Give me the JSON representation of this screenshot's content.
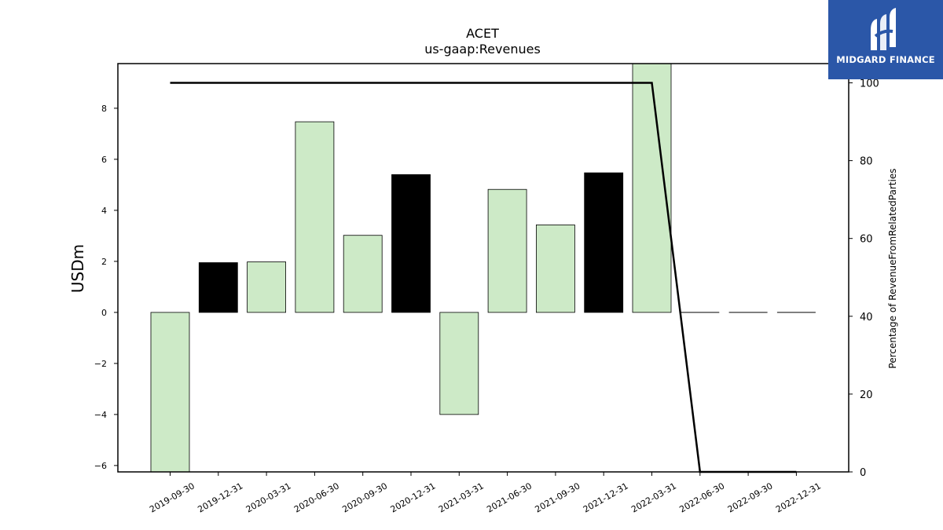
{
  "chart_data": {
    "type": "bar",
    "title": "ACET",
    "subtitle": "us-gaap:Revenues",
    "ylabel": "USDm",
    "y2label": "Percentage of RevenueFromRelatedParties",
    "categories": [
      "2019-09-30",
      "2019-12-31",
      "2020-03-31",
      "2020-06-30",
      "2020-09-30",
      "2020-12-31",
      "2021-03-31",
      "2021-06-30",
      "2021-09-30",
      "2021-12-31",
      "2022-03-31",
      "2022-06-30",
      "2022-09-30",
      "2022-12-31"
    ],
    "values": [
      -6.3,
      1.95,
      1.98,
      7.47,
      3.02,
      5.4,
      -4.0,
      4.82,
      3.43,
      5.47,
      9.8,
      0,
      0,
      0
    ],
    "bar_colors": [
      "#cdeac7",
      "#000000",
      "#cdeac7",
      "#cdeac7",
      "#cdeac7",
      "#000000",
      "#cdeac7",
      "#cdeac7",
      "#cdeac7",
      "#000000",
      "#cdeac7",
      "#cdeac7",
      "#cdeac7",
      "#cdeac7"
    ],
    "ylim": [
      -6.25,
      9.75
    ],
    "yticks": [
      -6,
      -4,
      -2,
      0,
      2,
      4,
      6,
      8
    ],
    "y2lim": [
      0,
      100
    ],
    "y2ticks": [
      0,
      20,
      40,
      60,
      80,
      100
    ],
    "line_series": {
      "x_index": [
        0,
        10,
        11,
        12,
        13
      ],
      "values": [
        100,
        100,
        0,
        0,
        0
      ],
      "color": "#000000"
    },
    "grid": false
  },
  "logo": {
    "text": "MIDGARD FINANCE",
    "color": "#2b57a8"
  }
}
